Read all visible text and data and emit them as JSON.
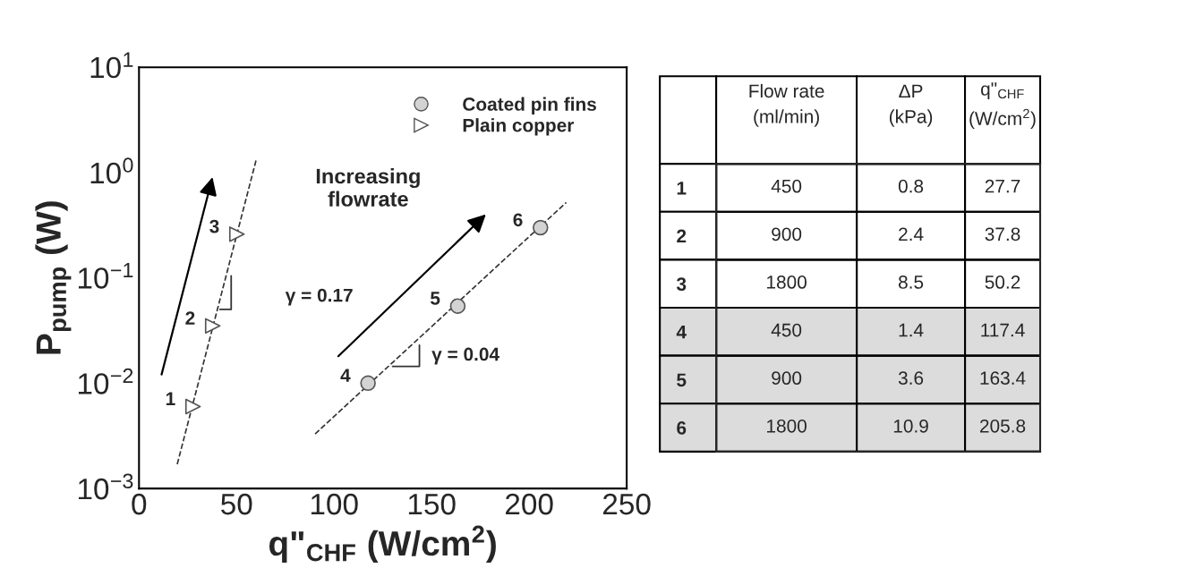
{
  "chart_data": [
    {
      "type": "scatter",
      "xlabel": "q\"$_{CHF}$ (W/cm$^{2}$)",
      "ylabel": "P$_{pump}$ (W)",
      "log": "y",
      "xlim": [
        0,
        250
      ],
      "xticks": [
        0,
        50,
        100,
        150,
        200,
        250
      ],
      "ylim": [
        0.001,
        10
      ],
      "yticks": [
        {
          "value": 0.001,
          "label": "10$^{−3}$"
        },
        {
          "value": 0.01,
          "label": "10$^{−2}$"
        },
        {
          "value": 0.1,
          "label": "10$^{−1}$"
        },
        {
          "value": 1,
          "label": "10$^{0}$"
        },
        {
          "value": 10,
          "label": "10$^{1}$"
        }
      ],
      "grid": false,
      "legend": "top right",
      "series": [
        {
          "name": "Coated pin fins",
          "marker": "circle",
          "color": "#d3d3d3",
          "x": [
            117.4,
            163.4,
            205.8
          ],
          "values": [
            0.01,
            0.054,
            0.3
          ]
        },
        {
          "name": "Plain copper",
          "marker": "triangle",
          "color": "#ffffff",
          "x": [
            27.7,
            37.8,
            50.2
          ],
          "values": [
            0.006,
            0.035,
            0.26
          ]
        },
        {
          "type": "line",
          "line_style": "dashed",
          "color": "#333333",
          "x": [
            19.6,
            60.2
          ],
          "values": [
            0.0017,
            1.35
          ]
        },
        {
          "type": "line",
          "line_style": "dashed",
          "color": "#333333",
          "x": [
            90.3,
            219
          ],
          "values": [
            0.0033,
            0.52
          ]
        }
      ],
      "annotations": [
        {
          "text": "1",
          "x": 27.7,
          "y": 0.006
        },
        {
          "text": "2",
          "x": 37.8,
          "y": 0.035
        },
        {
          "text": "3",
          "x": 50.2,
          "y": 0.26
        },
        {
          "text": "4",
          "x": 117.4,
          "y": 0.01
        },
        {
          "text": "5",
          "x": 163.4,
          "y": 0.054
        },
        {
          "text": "6",
          "x": 205.8,
          "y": 0.3
        },
        "γ = 0.17",
        "γ = 0.04",
        "Increasing\nflowrate"
      ]
    },
    {
      "type": "heatmap",
      "data_labels": true,
      "categories": [
        "Flow rate\n(ml/min)",
        "ΔP\n(kPa)",
        "q\"$_{CHF}$\n(W/cm$^{2}$)"
      ],
      "y_categories": [
        "1",
        "2",
        "3",
        "4",
        "5",
        "6"
      ],
      "cells": [
        [
          450,
          0.8,
          27.7
        ],
        [
          900,
          2.4,
          37.8
        ],
        [
          1800,
          8.5,
          50.2
        ],
        [
          450,
          1.4,
          117.4
        ],
        [
          900,
          3.6,
          163.4
        ],
        [
          1800,
          10.9,
          205.8
        ]
      ],
      "colors": [
        "#ffffff",
        "#ffffff",
        "#ffffff",
        "#dcdcdc",
        "#dcdcdc",
        "#dcdcdc"
      ]
    }
  ]
}
